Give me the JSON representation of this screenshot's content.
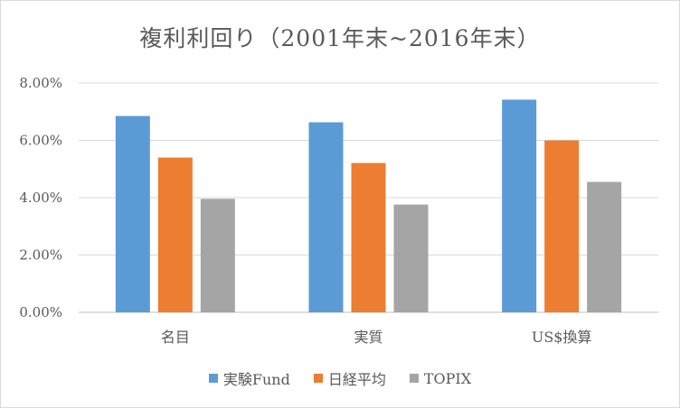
{
  "chart_data": {
    "type": "bar",
    "title": "複利利回り（2001年末~2016年末）",
    "categories": [
      "名目",
      "実質",
      "US$換算"
    ],
    "series": [
      {
        "name": "実験Fund",
        "color": "#5b9bd5",
        "values": [
          0.0685,
          0.0663,
          0.0742
        ]
      },
      {
        "name": "日経平均",
        "color": "#ed7d31",
        "values": [
          0.054,
          0.0521,
          0.06
        ]
      },
      {
        "name": "TOPIX",
        "color": "#a5a5a5",
        "values": [
          0.0396,
          0.0376,
          0.0455
        ]
      }
    ],
    "ylim": [
      0,
      0.08
    ],
    "yticks": [
      "0.00%",
      "2.00%",
      "4.00%",
      "6.00%",
      "8.00%"
    ],
    "grid": true,
    "legend_position": "bottom"
  }
}
